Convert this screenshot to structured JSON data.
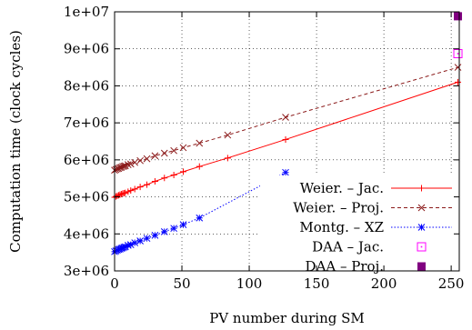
{
  "chart_data": {
    "type": "line",
    "title": "",
    "xlabel": "PV number during SM",
    "ylabel": "Computation time (clock cycles)",
    "xlim": [
      0,
      256
    ],
    "ylim": [
      3000000,
      10000000
    ],
    "x_ticks": [
      0,
      50,
      100,
      150,
      200,
      250
    ],
    "y_ticks": [
      3000000,
      4000000,
      5000000,
      6000000,
      7000000,
      8000000,
      9000000,
      10000000
    ],
    "x_tick_labels": [
      "0",
      "50",
      "100",
      "150",
      "200",
      "250"
    ],
    "y_tick_labels": [
      "3e+06",
      "4e+06",
      "5e+06",
      "6e+06",
      "7e+06",
      "8e+06",
      "9e+06",
      "1e+07"
    ],
    "grid": true,
    "legend_position": "bottom-right",
    "series": [
      {
        "name": "Weier. – Jac.",
        "color": "#ff0000",
        "style": "solid",
        "marker": "plus",
        "x": [
          0,
          1,
          2,
          3,
          4,
          5,
          6,
          7,
          8,
          10,
          12,
          15,
          19,
          24,
          30,
          37,
          44,
          51,
          63,
          84,
          127,
          255
        ],
        "y": [
          4990000,
          5010000,
          5030000,
          5045000,
          5060000,
          5075000,
          5090000,
          5100000,
          5110000,
          5140000,
          5170000,
          5210000,
          5270000,
          5330000,
          5420000,
          5510000,
          5590000,
          5680000,
          5820000,
          6050000,
          6550000,
          8100000
        ]
      },
      {
        "name": "Weier. – Proj.",
        "color": "#8b1a1a",
        "style": "dashed",
        "marker": "cross",
        "x": [
          0,
          1,
          2,
          3,
          4,
          5,
          6,
          7,
          8,
          10,
          12,
          15,
          19,
          24,
          30,
          37,
          44,
          51,
          63,
          84,
          127,
          255
        ],
        "y": [
          5720000,
          5740000,
          5760000,
          5770000,
          5790000,
          5800000,
          5820000,
          5830000,
          5840000,
          5870000,
          5890000,
          5930000,
          5980000,
          6030000,
          6110000,
          6180000,
          6250000,
          6330000,
          6450000,
          6670000,
          7150000,
          8500000
        ]
      },
      {
        "name": "Montg. – XZ",
        "color": "#0000ff",
        "style": "dotted",
        "marker": "star",
        "x": [
          0,
          1,
          2,
          3,
          4,
          5,
          6,
          7,
          8,
          10,
          12,
          15,
          19,
          24,
          30,
          37,
          44,
          51,
          63,
          127
        ],
        "y": [
          3520000,
          3540000,
          3560000,
          3580000,
          3590000,
          3610000,
          3620000,
          3640000,
          3650000,
          3690000,
          3710000,
          3760000,
          3810000,
          3880000,
          3960000,
          4060000,
          4150000,
          4250000,
          4430000,
          5660000
        ]
      },
      {
        "name": "DAA – Jac.",
        "color": "#ff00ff",
        "style": "none",
        "marker": "open-square",
        "x": [
          255
        ],
        "y": [
          8870000
        ]
      },
      {
        "name": "DAA – Proj.",
        "color": "#800080",
        "style": "none",
        "marker": "filled-square",
        "x": [
          255
        ],
        "y": [
          9880000
        ]
      }
    ]
  }
}
